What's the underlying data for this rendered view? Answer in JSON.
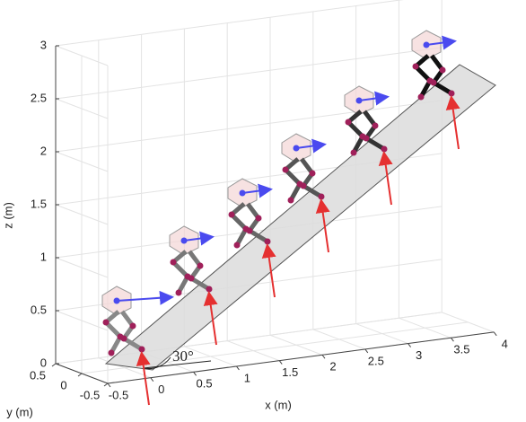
{
  "chart_data": {
    "type": "scatter3d",
    "xlabel": "x (m)",
    "ylabel": "y (m)",
    "zlabel": "z (m)",
    "xlim": [
      -0.5,
      4
    ],
    "ylim": [
      -0.5,
      0.5
    ],
    "zlim": [
      0,
      3
    ],
    "xticks": [
      -0.5,
      0,
      0.5,
      1,
      1.5,
      2,
      2.5,
      3,
      3.5,
      4
    ],
    "yticks": [
      -0.5,
      0,
      0.5
    ],
    "zticks": [
      0,
      0.5,
      1,
      1.5,
      2,
      2.5,
      3
    ],
    "annotation": "30°",
    "grid": true
  }
}
